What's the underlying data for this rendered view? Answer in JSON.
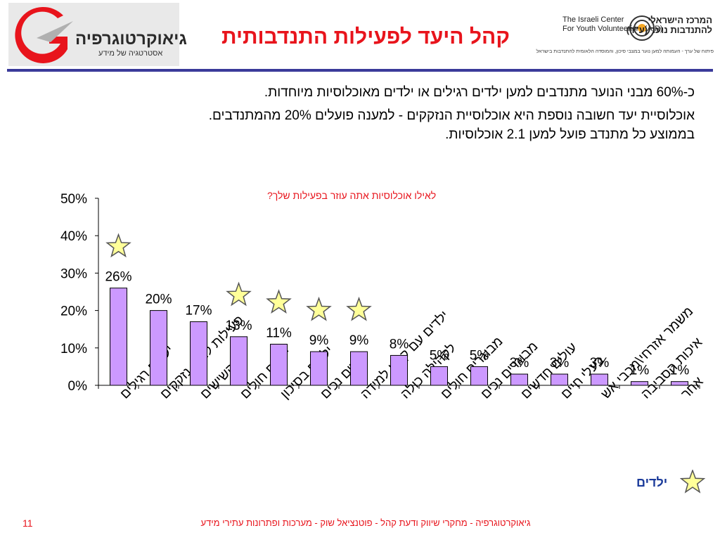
{
  "header": {
    "left_logo": {
      "brand": "גיאוקרטוגרפיה",
      "tagline": "אסטרטגיה של מידע"
    },
    "title": "קהל היעד לפעילות התנדבותית",
    "right_logo": {
      "en_line1": "The Israeli Center",
      "en_line2": "For Youth Volunteerism (A.R)",
      "he_line1": "המרכז הישראלי",
      "he_line2": "להתנדבות נוער (ע\"ר)",
      "tiny": "פיתוח של ערך - העמותה למען נוער במצבי סיכון, והמוסדה הלאומית להתנדבות בישראל"
    }
  },
  "body": {
    "line1": "כ-60% מבני הנוער מתנדבים למען ילדים רגילים או ילדים מאוכלוסיות מיוחדות.",
    "line2": "אוכלוסיית יעד חשובה נוספת היא אוכלוסיית הנזקקים - למענה פועלים 20% מהמתנדבים.",
    "line3": "בממוצע כל מתנדב פועל למען 2.1 אוכלוסיות."
  },
  "chart_data": {
    "type": "bar",
    "title": "לאילו אוכלוסיות אתה עוזר בפעילות שלך?",
    "ylim": [
      0,
      50
    ],
    "yticks": [
      "0%",
      "10%",
      "20%",
      "30%",
      "40%",
      "50%"
    ],
    "categories": [
      "ילדים רגילים",
      "פעילות למען נזקקים",
      "קשישים",
      "ילדים חולים",
      "ילדים בסיכון",
      "ילדים נכים",
      "ילדים עם קשיי למידה",
      "לקהילה כולה",
      "מבוגרים חולים",
      "מבוגרים נכים",
      "עולים חדשים",
      "בעלי חיים",
      "משמר אזרחי\\מכבי אש",
      "איכות הסביבה",
      "אחר"
    ],
    "values": [
      26,
      20,
      17,
      13,
      11,
      9,
      9,
      8,
      5,
      5,
      3,
      3,
      3,
      1,
      1
    ],
    "value_labels": [
      "26%",
      "20%",
      "17%",
      "13%",
      "11%",
      "9%",
      "9%",
      "8%",
      "5%",
      "5%",
      "3%",
      "3%",
      "3%",
      "1%",
      "1%"
    ],
    "starred": [
      0,
      3,
      4,
      5,
      6
    ],
    "bar_color": "#cc99ff",
    "grid": false
  },
  "legend": {
    "label": "ילדים",
    "star_color": "#ffff99"
  },
  "footer": {
    "text": "גיאוקרטוגרפיה - מחקרי שיווק ודעת קהל - פוטנציאל שוק - מערכות ופתרונות עתירי מידע",
    "page": "11"
  },
  "colors": {
    "title_red": "#e8141c",
    "rule_blue": "#3a3a9a",
    "legend_blue": "#1a3a9a",
    "star_fill": "#ffff99"
  }
}
